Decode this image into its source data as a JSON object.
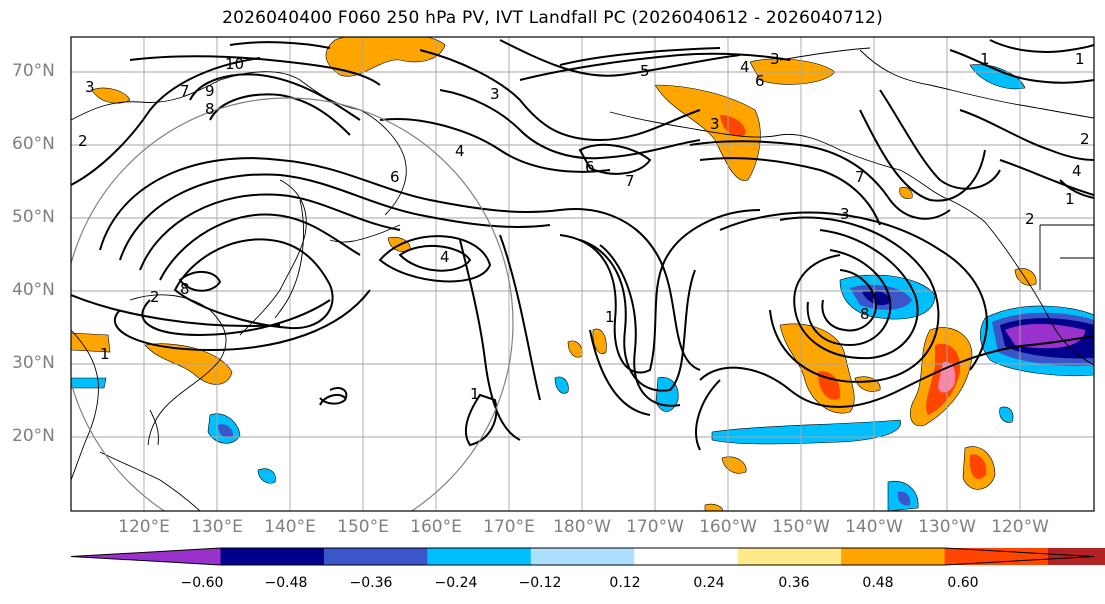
{
  "title": "2026040400 F060 250 hPa PV, IVT Landfall PC (2026040612 - 2026040712)",
  "lat_labels": [
    "70°N",
    "60°N",
    "50°N",
    "40°N",
    "30°N",
    "20°N"
  ],
  "lon_labels": [
    "120°E",
    "130°E",
    "140°E",
    "150°E",
    "160°E",
    "170°E",
    "180°W",
    "170°W",
    "160°W",
    "150°W",
    "140°W",
    "130°W",
    "120°W"
  ],
  "colorbar": {
    "colors": [
      "#9932CC",
      "#00008B",
      "#3A56C8",
      "#00BFFF",
      "#ADDFFF",
      "#FFFFFF",
      "#FFE98A",
      "#FFA500",
      "#FF4500",
      "#B22222",
      "#FF86A8"
    ],
    "tick_labels": [
      "−0.60",
      "−0.48",
      "−0.36",
      "−0.24",
      "−0.12",
      "0.12",
      "0.24",
      "0.36",
      "0.48",
      "0.60"
    ]
  },
  "contour_labels": [
    "10",
    "9",
    "8",
    "3",
    "2",
    "7",
    "6",
    "5",
    "4",
    "3",
    "6",
    "3",
    "4",
    "1",
    "6",
    "7",
    "8",
    "2",
    "4",
    "1",
    "7",
    "3",
    "8",
    "1",
    "2",
    "1",
    "1",
    "3",
    "4",
    "1",
    "2"
  ]
}
